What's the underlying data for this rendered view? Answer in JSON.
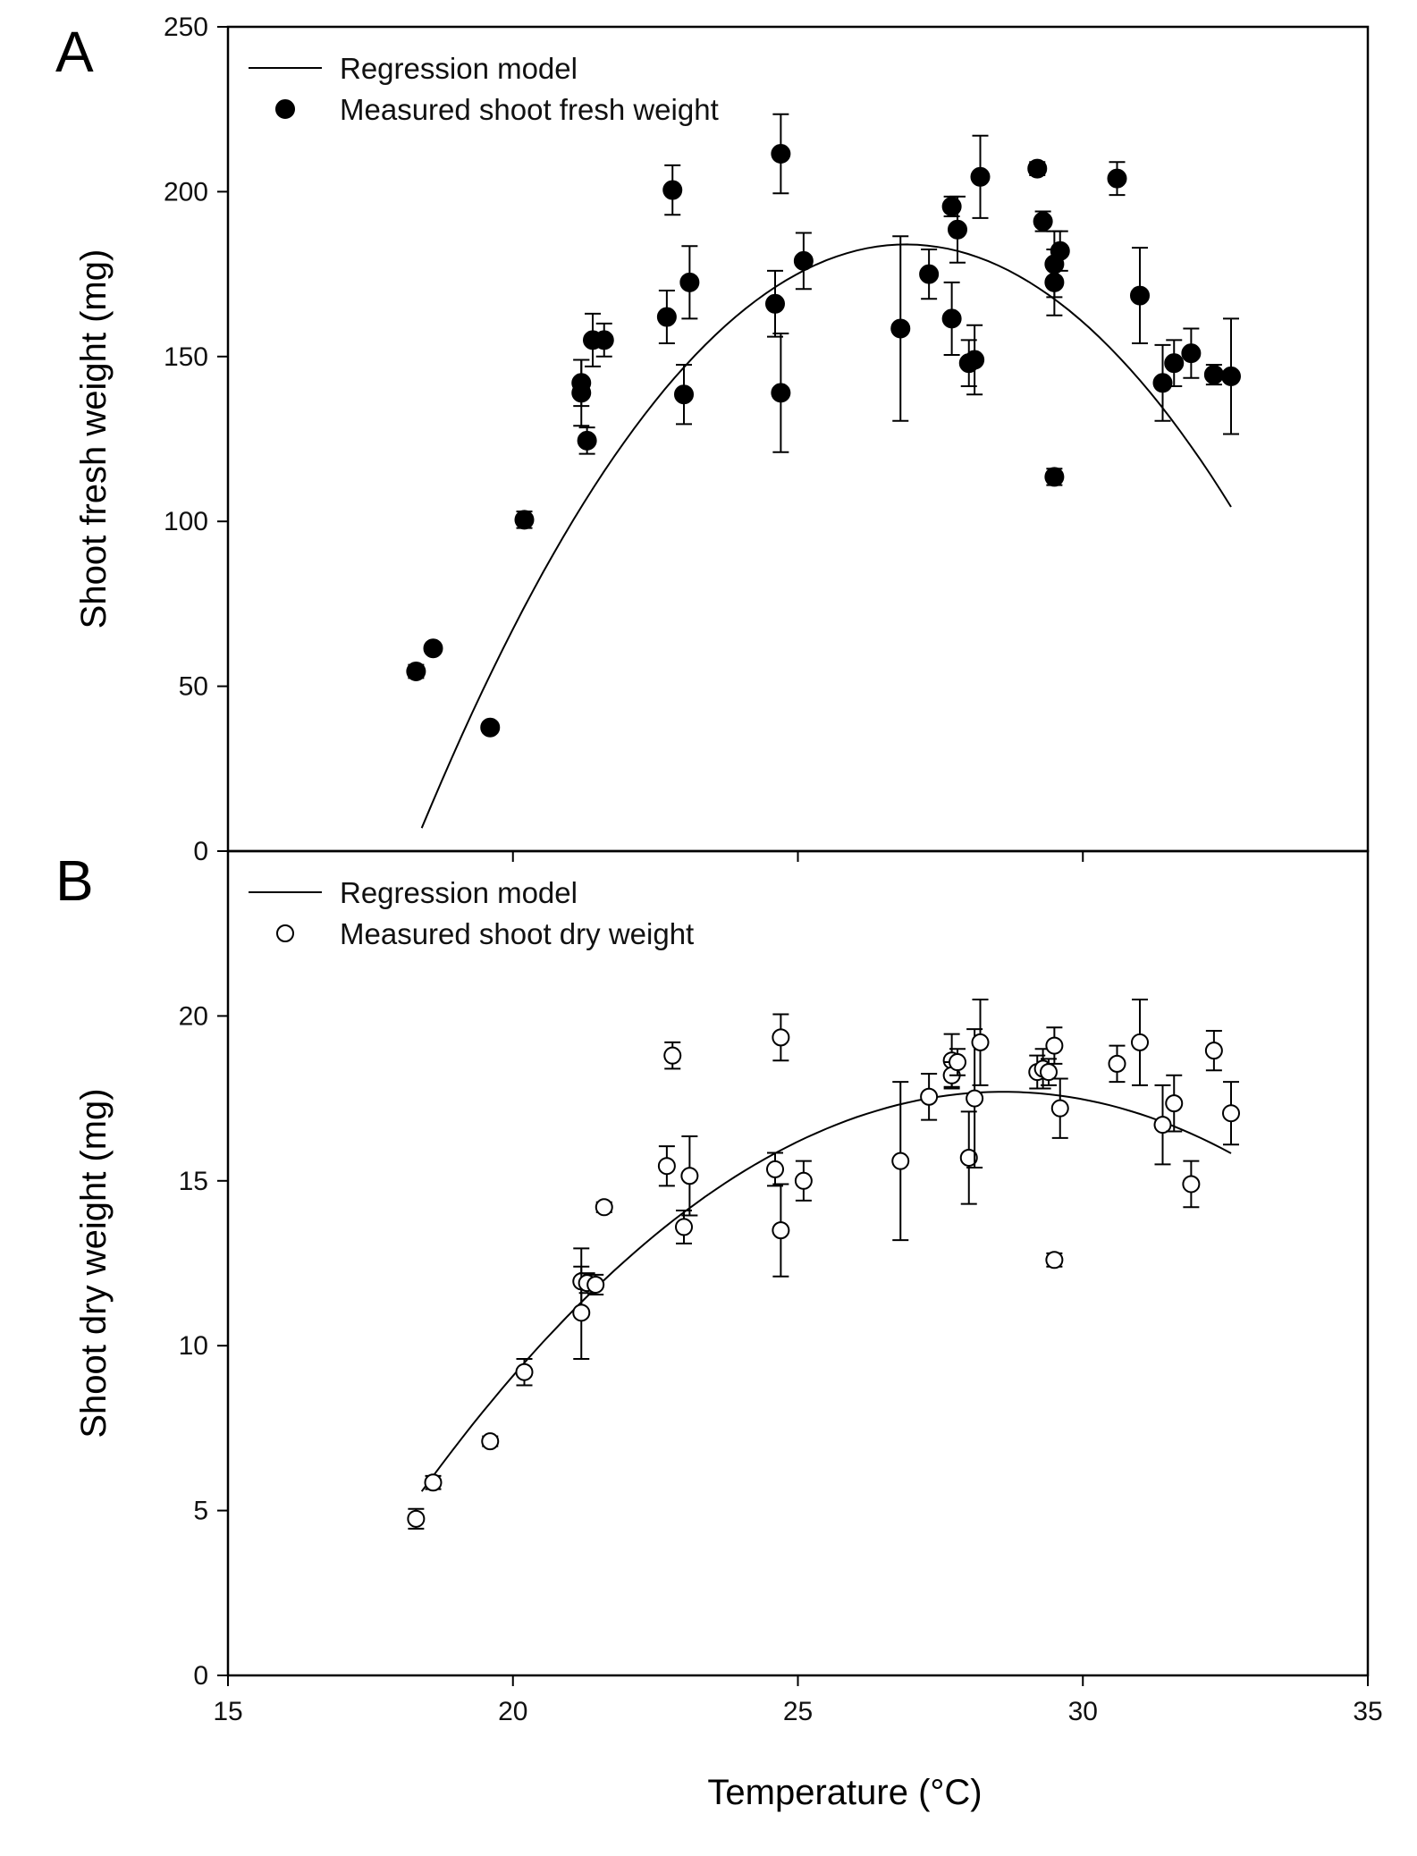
{
  "xaxis": {
    "label": "Temperature (°C)",
    "lim": [
      15,
      35
    ],
    "ticks": [
      15,
      20,
      25,
      30,
      35
    ],
    "tick_labels": [
      "15",
      "20",
      "25",
      "30",
      "35"
    ]
  },
  "chart_data": [
    {
      "type": "scatter",
      "panel": "A",
      "ylabel": "Shoot fresh weight (mg)",
      "ylim": [
        0,
        250
      ],
      "yticks": [
        0,
        50,
        100,
        150,
        200,
        250
      ],
      "ytick_labels": [
        "0",
        "50",
        "100",
        "150",
        "200",
        "250"
      ],
      "legend": {
        "position": "top-left",
        "line_label": "Regression model",
        "marker_label": "Measured shoot fresh weight",
        "marker": "filled"
      },
      "regression": {
        "label": "Regression model",
        "a": -2.45,
        "t_opt": 26.9,
        "peak": 184,
        "range": [
          18.4,
          32.6
        ]
      },
      "series": {
        "name": "Measured shoot fresh weight",
        "points": [
          {
            "x": 18.3,
            "y": 54.5,
            "err": 2
          },
          {
            "x": 18.6,
            "y": 61.5,
            "err": 1
          },
          {
            "x": 19.6,
            "y": 37.5,
            "err": 1.5
          },
          {
            "x": 20.2,
            "y": 100.5,
            "err": 2.5
          },
          {
            "x": 21.2,
            "y": 139,
            "err": 10
          },
          {
            "x": 21.2,
            "y": 142,
            "err": 7
          },
          {
            "x": 21.3,
            "y": 124.5,
            "err": 4
          },
          {
            "x": 21.4,
            "y": 155,
            "err": 8
          },
          {
            "x": 21.6,
            "y": 155,
            "err": 5
          },
          {
            "x": 22.7,
            "y": 162,
            "err": 8
          },
          {
            "x": 22.8,
            "y": 200.5,
            "err": 7.5
          },
          {
            "x": 23.0,
            "y": 138.5,
            "err": 9
          },
          {
            "x": 23.1,
            "y": 172.5,
            "err": 11
          },
          {
            "x": 24.6,
            "y": 166,
            "err": 10
          },
          {
            "x": 24.7,
            "y": 139,
            "err": 18
          },
          {
            "x": 24.7,
            "y": 211.5,
            "err": 12
          },
          {
            "x": 25.1,
            "y": 179,
            "err": 8.5
          },
          {
            "x": 26.8,
            "y": 158.5,
            "err": 28
          },
          {
            "x": 27.3,
            "y": 175,
            "err": 7.5
          },
          {
            "x": 27.7,
            "y": 195.5,
            "err": 3
          },
          {
            "x": 27.7,
            "y": 161.5,
            "err": 11
          },
          {
            "x": 27.8,
            "y": 188.5,
            "err": 10
          },
          {
            "x": 28.0,
            "y": 148,
            "err": 7
          },
          {
            "x": 28.1,
            "y": 149,
            "err": 10.5
          },
          {
            "x": 28.2,
            "y": 204.5,
            "err": 12.5
          },
          {
            "x": 29.2,
            "y": 207,
            "err": 2
          },
          {
            "x": 29.3,
            "y": 191,
            "err": 3
          },
          {
            "x": 29.5,
            "y": 178,
            "err": 10
          },
          {
            "x": 29.5,
            "y": 172.5,
            "err": 10
          },
          {
            "x": 29.6,
            "y": 182,
            "err": 6
          },
          {
            "x": 29.5,
            "y": 113.5,
            "err": 2.5
          },
          {
            "x": 30.6,
            "y": 204,
            "err": 5
          },
          {
            "x": 31.0,
            "y": 168.5,
            "err": 14.5
          },
          {
            "x": 31.4,
            "y": 142,
            "err": 11.5
          },
          {
            "x": 31.6,
            "y": 148,
            "err": 7
          },
          {
            "x": 31.9,
            "y": 151,
            "err": 7.5
          },
          {
            "x": 32.3,
            "y": 144.5,
            "err": 3
          },
          {
            "x": 32.6,
            "y": 144,
            "err": 17.5
          }
        ]
      }
    },
    {
      "type": "scatter",
      "panel": "B",
      "ylabel": "Shoot dry weight (mg)",
      "ylim": [
        0,
        25
      ],
      "yticks": [
        0,
        5,
        10,
        15,
        20
      ],
      "ytick_labels": [
        "0",
        "5",
        "10",
        "15",
        "20"
      ],
      "legend": {
        "position": "top-left",
        "line_label": "Regression model",
        "marker_label": "Measured shoot dry weight",
        "marker": "open"
      },
      "regression": {
        "label": "Regression model",
        "a": -0.1165,
        "t_opt": 28.6,
        "peak": 17.7,
        "range": [
          18.4,
          32.6
        ]
      },
      "series": {
        "name": "Measured shoot dry weight",
        "points": [
          {
            "x": 18.3,
            "y": 4.75,
            "err": 0.3
          },
          {
            "x": 18.6,
            "y": 5.85,
            "err": 0.2
          },
          {
            "x": 19.6,
            "y": 7.1,
            "err": 0.15
          },
          {
            "x": 20.2,
            "y": 9.2,
            "err": 0.4
          },
          {
            "x": 21.2,
            "y": 11.95,
            "err": 1.0
          },
          {
            "x": 21.2,
            "y": 11.0,
            "err": 1.4
          },
          {
            "x": 21.3,
            "y": 11.9,
            "err": 0.3
          },
          {
            "x": 21.45,
            "y": 11.85,
            "err": 0.3
          },
          {
            "x": 21.6,
            "y": 14.2,
            "err": 0.15
          },
          {
            "x": 22.7,
            "y": 15.45,
            "err": 0.6
          },
          {
            "x": 22.8,
            "y": 18.8,
            "err": 0.4
          },
          {
            "x": 23.0,
            "y": 13.6,
            "err": 0.5
          },
          {
            "x": 23.1,
            "y": 15.15,
            "err": 1.2
          },
          {
            "x": 24.6,
            "y": 15.35,
            "err": 0.5
          },
          {
            "x": 24.7,
            "y": 13.5,
            "err": 1.4
          },
          {
            "x": 24.7,
            "y": 19.35,
            "err": 0.7
          },
          {
            "x": 25.1,
            "y": 15.0,
            "err": 0.6
          },
          {
            "x": 26.8,
            "y": 15.6,
            "err": 2.4
          },
          {
            "x": 27.3,
            "y": 17.55,
            "err": 0.7
          },
          {
            "x": 27.7,
            "y": 18.65,
            "err": 0.8
          },
          {
            "x": 27.7,
            "y": 18.2,
            "err": 0.4
          },
          {
            "x": 27.8,
            "y": 18.6,
            "err": 0.4
          },
          {
            "x": 28.0,
            "y": 15.7,
            "err": 1.4
          },
          {
            "x": 28.1,
            "y": 17.5,
            "err": 2.1
          },
          {
            "x": 28.2,
            "y": 19.2,
            "err": 1.3
          },
          {
            "x": 29.2,
            "y": 18.3,
            "err": 0.5
          },
          {
            "x": 29.3,
            "y": 18.4,
            "err": 0.6
          },
          {
            "x": 29.4,
            "y": 18.3,
            "err": 0.4
          },
          {
            "x": 29.5,
            "y": 19.1,
            "err": 0.55
          },
          {
            "x": 29.6,
            "y": 17.2,
            "err": 0.9
          },
          {
            "x": 29.5,
            "y": 12.6,
            "err": 0.2
          },
          {
            "x": 30.6,
            "y": 18.55,
            "err": 0.55
          },
          {
            "x": 31.0,
            "y": 19.2,
            "err": 1.3
          },
          {
            "x": 31.4,
            "y": 16.7,
            "err": 1.2
          },
          {
            "x": 31.6,
            "y": 17.35,
            "err": 0.85
          },
          {
            "x": 31.9,
            "y": 14.9,
            "err": 0.7
          },
          {
            "x": 32.3,
            "y": 18.95,
            "err": 0.6
          },
          {
            "x": 32.6,
            "y": 17.05,
            "err": 0.95
          }
        ]
      }
    }
  ]
}
